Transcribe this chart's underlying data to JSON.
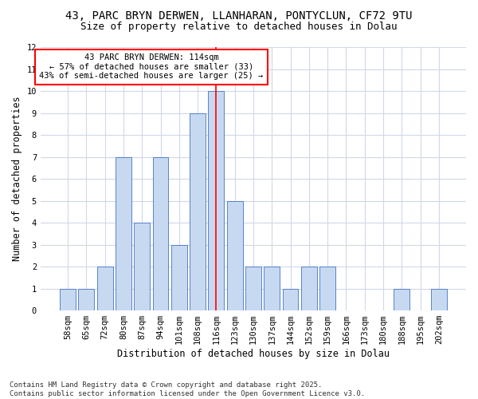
{
  "title_line1": "43, PARC BRYN DERWEN, LLANHARAN, PONTYCLUN, CF72 9TU",
  "title_line2": "Size of property relative to detached houses in Dolau",
  "xlabel": "Distribution of detached houses by size in Dolau",
  "ylabel": "Number of detached properties",
  "categories": [
    "58sqm",
    "65sqm",
    "72sqm",
    "80sqm",
    "87sqm",
    "94sqm",
    "101sqm",
    "108sqm",
    "116sqm",
    "123sqm",
    "130sqm",
    "137sqm",
    "144sqm",
    "152sqm",
    "159sqm",
    "166sqm",
    "173sqm",
    "180sqm",
    "188sqm",
    "195sqm",
    "202sqm"
  ],
  "values": [
    1,
    1,
    2,
    7,
    4,
    7,
    3,
    9,
    10,
    5,
    2,
    2,
    1,
    2,
    2,
    0,
    0,
    0,
    1,
    0,
    1
  ],
  "bar_color": "#c6d9f1",
  "bar_edge_color": "#4472c4",
  "highlight_index": 8,
  "vline_color": "red",
  "annotation_title": "43 PARC BRYN DERWEN: 114sqm",
  "annotation_line2": "← 57% of detached houses are smaller (33)",
  "annotation_line3": "43% of semi-detached houses are larger (25) →",
  "annotation_box_color": "red",
  "annotation_box_facecolor": "white",
  "ylim": [
    0,
    12
  ],
  "yticks": [
    0,
    1,
    2,
    3,
    4,
    5,
    6,
    7,
    8,
    9,
    10,
    11,
    12
  ],
  "footer_line1": "Contains HM Land Registry data © Crown copyright and database right 2025.",
  "footer_line2": "Contains public sector information licensed under the Open Government Licence v3.0.",
  "background_color": "#ffffff",
  "plot_bg_color": "#ffffff",
  "grid_color": "#d0d8e8",
  "title_fontsize": 10,
  "subtitle_fontsize": 9,
  "axis_label_fontsize": 8.5,
  "tick_fontsize": 7.5,
  "annotation_fontsize": 7.5,
  "footer_fontsize": 6.5
}
